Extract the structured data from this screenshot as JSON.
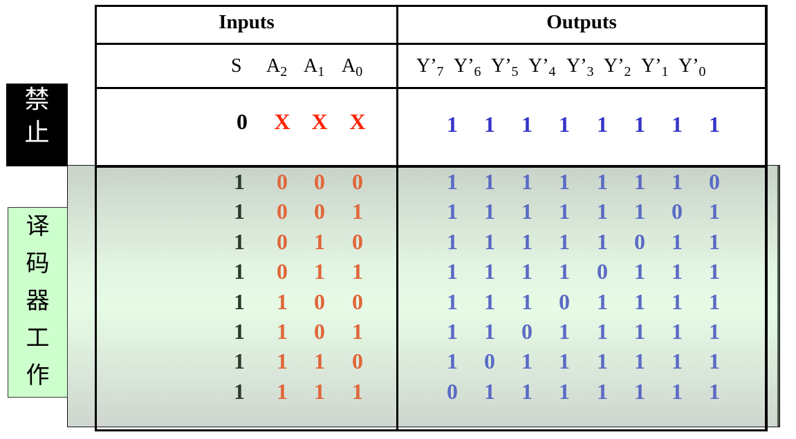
{
  "side_labels": {
    "disable": [
      "禁",
      "止"
    ],
    "decode": [
      "译",
      "码",
      "器",
      "工",
      "作"
    ]
  },
  "header": {
    "inputs_title": "Inputs",
    "outputs_title": "Outputs",
    "input_columns": [
      {
        "base": "S",
        "sub": ""
      },
      {
        "base": "A",
        "sub": "2"
      },
      {
        "base": "A",
        "sub": "1"
      },
      {
        "base": "A",
        "sub": "0"
      }
    ],
    "output_columns": [
      {
        "base": "Y’",
        "sub": "7"
      },
      {
        "base": "Y’",
        "sub": "6"
      },
      {
        "base": "Y’",
        "sub": "5"
      },
      {
        "base": "Y’",
        "sub": "4"
      },
      {
        "base": "Y’",
        "sub": "3"
      },
      {
        "base": "Y’",
        "sub": "2"
      },
      {
        "base": "Y’",
        "sub": "1"
      },
      {
        "base": "Y’",
        "sub": "0"
      }
    ]
  },
  "disable_row": {
    "inputs": [
      "0",
      "X",
      "X",
      "X"
    ],
    "outputs": [
      "1",
      "1",
      "1",
      "1",
      "1",
      "1",
      "1",
      "1"
    ]
  },
  "rows": [
    {
      "inputs": [
        "1",
        "0",
        "0",
        "0"
      ],
      "outputs": [
        "1",
        "1",
        "1",
        "1",
        "1",
        "1",
        "1",
        "0"
      ]
    },
    {
      "inputs": [
        "1",
        "0",
        "0",
        "1"
      ],
      "outputs": [
        "1",
        "1",
        "1",
        "1",
        "1",
        "1",
        "0",
        "1"
      ]
    },
    {
      "inputs": [
        "1",
        "0",
        "1",
        "0"
      ],
      "outputs": [
        "1",
        "1",
        "1",
        "1",
        "1",
        "0",
        "1",
        "1"
      ]
    },
    {
      "inputs": [
        "1",
        "0",
        "1",
        "1"
      ],
      "outputs": [
        "1",
        "1",
        "1",
        "1",
        "0",
        "1",
        "1",
        "1"
      ]
    },
    {
      "inputs": [
        "1",
        "1",
        "0",
        "0"
      ],
      "outputs": [
        "1",
        "1",
        "1",
        "0",
        "1",
        "1",
        "1",
        "1"
      ]
    },
    {
      "inputs": [
        "1",
        "1",
        "0",
        "1"
      ],
      "outputs": [
        "1",
        "1",
        "0",
        "1",
        "1",
        "1",
        "1",
        "1"
      ]
    },
    {
      "inputs": [
        "1",
        "1",
        "1",
        "0"
      ],
      "outputs": [
        "1",
        "0",
        "1",
        "1",
        "1",
        "1",
        "1",
        "1"
      ]
    },
    {
      "inputs": [
        "1",
        "1",
        "1",
        "1"
      ],
      "outputs": [
        "0",
        "1",
        "1",
        "1",
        "1",
        "1",
        "1",
        "1"
      ]
    }
  ],
  "colors": {
    "enable_value": "#2b3a2b",
    "input_value": "#e0663a",
    "x_value": "#ff2200",
    "output_value": "#5a6ac4",
    "disable_output": "#3535c8",
    "disable_label_bg": "#000000",
    "decode_label_bg": "#ccffcc"
  }
}
